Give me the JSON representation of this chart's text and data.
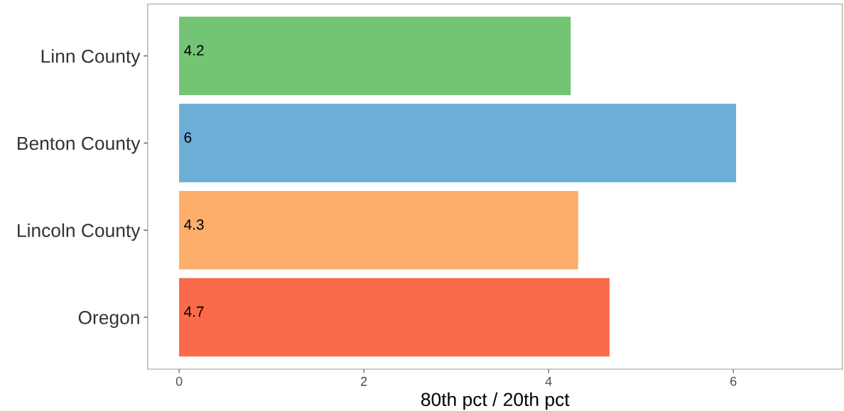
{
  "chart_data": {
    "type": "bar",
    "orientation": "horizontal",
    "xlabel": "80th pct / 20th pct",
    "categories": [
      "Linn County",
      "Benton County",
      "Lincoln County",
      "Oregon"
    ],
    "values": [
      4.24,
      6.03,
      4.32,
      4.66
    ],
    "value_labels": [
      "4.2",
      "6",
      "4.3",
      "4.7"
    ],
    "colors": [
      "#74c476",
      "#6baed6",
      "#fdae6b",
      "#fb6a4a"
    ],
    "xlim": [
      -0.34,
      7.18
    ],
    "xticks": [
      0,
      2,
      4,
      6
    ],
    "grid": false,
    "legend": false
  }
}
